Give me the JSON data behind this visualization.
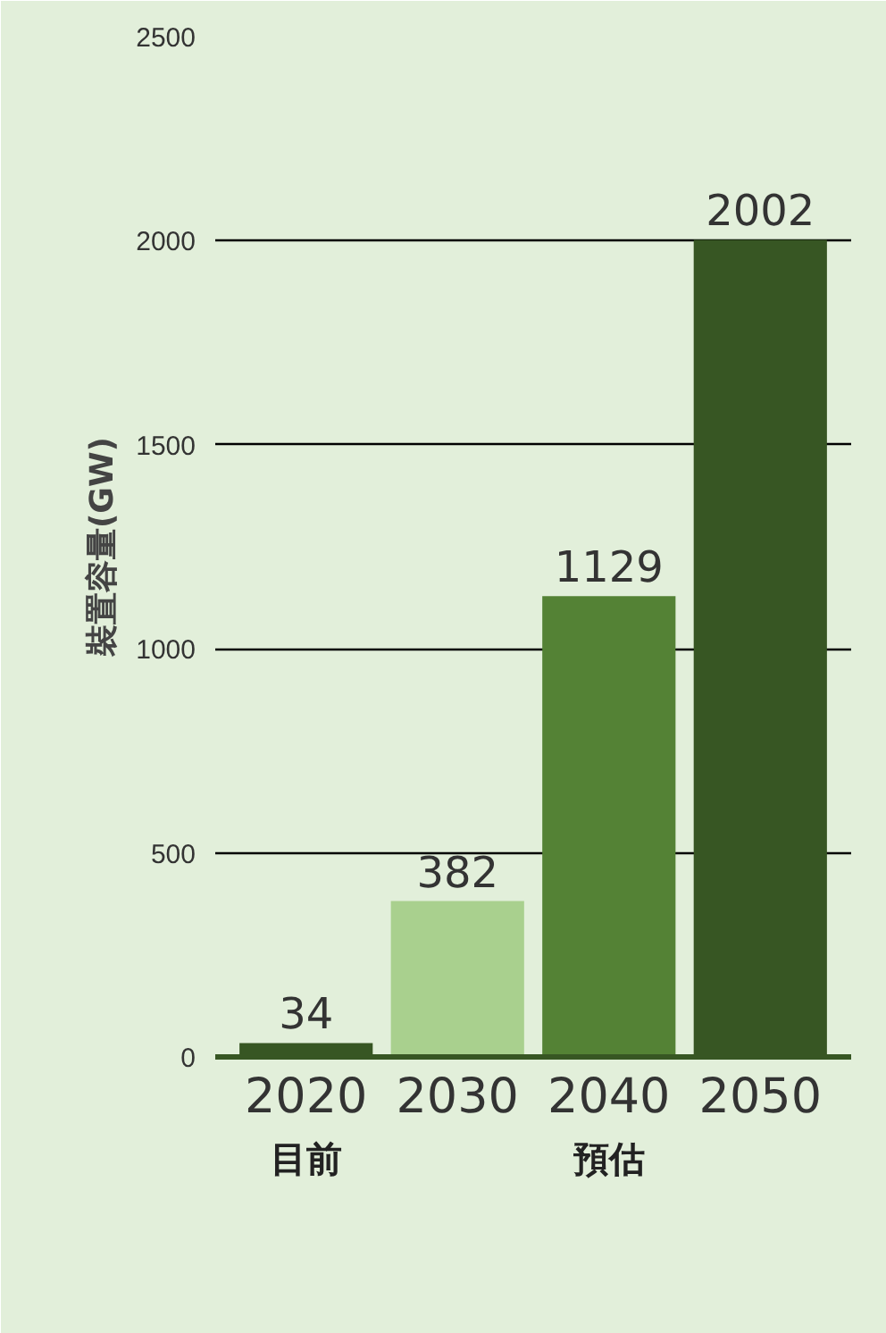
{
  "chart_data": {
    "type": "bar",
    "ylabel": "裝置容量(GW)",
    "categories": [
      "2020",
      "2030",
      "2040",
      "2050"
    ],
    "values": [
      34,
      382,
      1129,
      2002
    ],
    "colors": [
      "#375623",
      "#a9d08e",
      "#548235",
      "#375623"
    ],
    "ylim": [
      0,
      2500
    ],
    "yticks": [
      0,
      500,
      1000,
      1500,
      2000,
      2500
    ],
    "grid": "y",
    "data_labels": true,
    "annotations": [
      "目前",
      "預估"
    ]
  }
}
